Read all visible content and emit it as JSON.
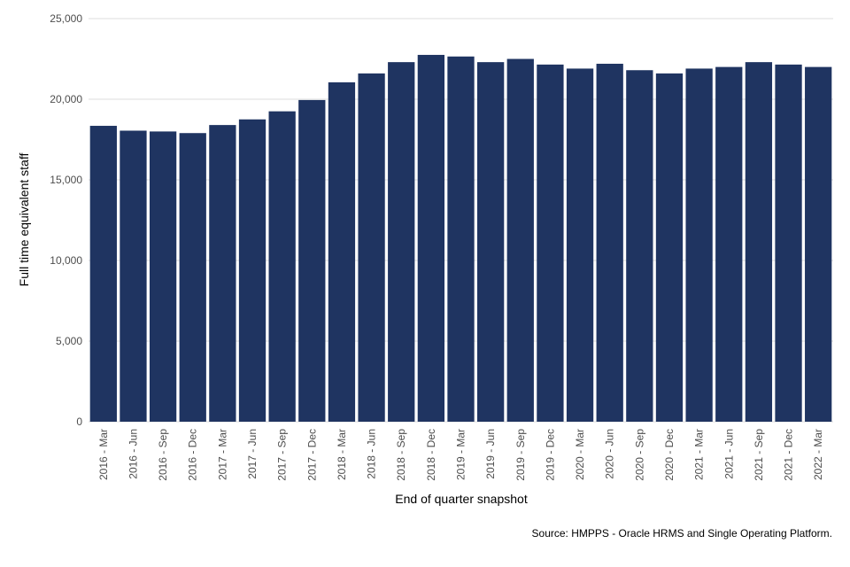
{
  "chart_data": {
    "type": "bar",
    "title": "",
    "xlabel": "End of quarter snapshot",
    "ylabel": "Full time equivalent staff",
    "source": "Source: HMPPS - Oracle HRMS and Single Operating Platform.",
    "ylim": [
      0,
      25000
    ],
    "yticks": [
      0,
      5000,
      10000,
      15000,
      20000,
      25000
    ],
    "ytick_labels": [
      "0",
      "5,000",
      "10,000",
      "15,000",
      "20,000",
      "25,000"
    ],
    "grid": true,
    "bar_color": "#1f3461",
    "categories": [
      "2016 - Mar",
      "2016 - Jun",
      "2016 - Sep",
      "2016 - Dec",
      "2017 - Mar",
      "2017 - Jun",
      "2017 - Sep",
      "2017 - Dec",
      "2018 - Mar",
      "2018 - Jun",
      "2018 - Sep",
      "2018 - Dec",
      "2019 - Mar",
      "2019 - Jun",
      "2019 - Sep",
      "2019 - Dec",
      "2020 - Mar",
      "2020 - Jun",
      "2020 - Sep",
      "2020 - Dec",
      "2021 - Mar",
      "2021 - Jun",
      "2021 - Sep",
      "2021 - Dec",
      "2022 - Mar"
    ],
    "values": [
      18350,
      18050,
      18000,
      17900,
      18400,
      18750,
      19250,
      19950,
      21050,
      21600,
      22300,
      22750,
      22650,
      22300,
      22500,
      22150,
      21900,
      22200,
      21800,
      21600,
      21900,
      22000,
      22300,
      22150,
      22000
    ]
  }
}
